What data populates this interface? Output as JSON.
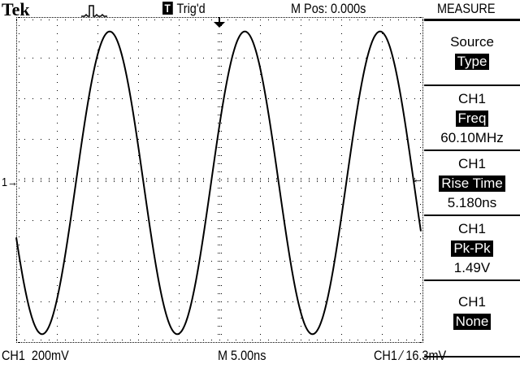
{
  "header": {
    "brand": "Tek",
    "acquire_icon": "pulse-acquire-icon",
    "trigger_badge": "T",
    "trigger_status": "Trig'd",
    "main_position": "M Pos: 0.000s",
    "menu_title": "MEASURE"
  },
  "menu": [
    {
      "line1": "Source",
      "highlight": "Type",
      "line3": ""
    },
    {
      "line1": "CH1",
      "highlight": "Freq",
      "line3": "60.10MHz"
    },
    {
      "line1": "CH1",
      "highlight": "Rise Time",
      "line3": "5.180ns"
    },
    {
      "line1": "CH1",
      "highlight": "Pk-Pk",
      "line3": "1.49V"
    },
    {
      "line1": "CH1",
      "highlight": "None",
      "line3": ""
    }
  ],
  "footer": {
    "channel_scale": "CH1  200mV",
    "timebase": "M 5.00ns",
    "trigger": "CH1 ∕ 16.3mV"
  },
  "markers": {
    "ground_marker": "1→",
    "trigger_level_marker": "←"
  },
  "waveform": {
    "channel": "CH1",
    "frequency_mhz": 60.1,
    "pk_pk_v": 1.49,
    "volts_per_div": 0.2,
    "time_per_div_ns": 5.0,
    "color": "#000000"
  }
}
